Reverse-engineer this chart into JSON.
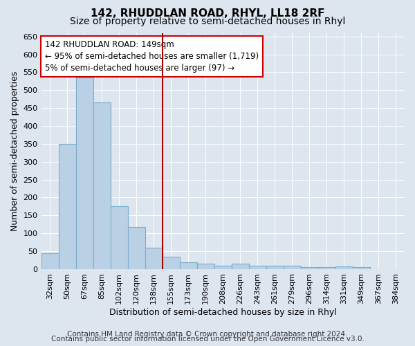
{
  "title": "142, RHUDDLAN ROAD, RHYL, LL18 2RF",
  "subtitle": "Size of property relative to semi-detached houses in Rhyl",
  "xlabel": "Distribution of semi-detached houses by size in Rhyl",
  "ylabel": "Number of semi-detached properties",
  "categories": [
    "32sqm",
    "50sqm",
    "67sqm",
    "85sqm",
    "102sqm",
    "120sqm",
    "138sqm",
    "155sqm",
    "173sqm",
    "190sqm",
    "208sqm",
    "226sqm",
    "243sqm",
    "261sqm",
    "279sqm",
    "296sqm",
    "314sqm",
    "331sqm",
    "349sqm",
    "367sqm",
    "384sqm"
  ],
  "values": [
    45,
    350,
    535,
    465,
    175,
    118,
    60,
    35,
    20,
    15,
    10,
    15,
    10,
    10,
    10,
    5,
    5,
    8,
    5,
    0,
    0
  ],
  "bar_color": "#bad0e4",
  "bar_edge_color": "#7aaecb",
  "red_line_index": 7,
  "red_line_color": "#aa0000",
  "annotation_line1": "142 RHUDDLAN ROAD: 149sqm",
  "annotation_line2": "← 95% of semi-detached houses are smaller (1,719)",
  "annotation_line3": "5% of semi-detached houses are larger (97) →",
  "annotation_box_color": "#cc0000",
  "annotation_box_bg": "#ffffff",
  "ylim": [
    0,
    660
  ],
  "yticks": [
    0,
    50,
    100,
    150,
    200,
    250,
    300,
    350,
    400,
    450,
    500,
    550,
    600,
    650
  ],
  "footer_line1": "Contains HM Land Registry data © Crown copyright and database right 2024.",
  "footer_line2": "Contains public sector information licensed under the Open Government Licence v3.0.",
  "background_color": "#dde5ef",
  "plot_bg_color": "#dde5ef",
  "title_fontsize": 11,
  "subtitle_fontsize": 10,
  "axis_label_fontsize": 9,
  "tick_fontsize": 8,
  "footer_fontsize": 7.5,
  "annotation_fontsize": 8.5
}
